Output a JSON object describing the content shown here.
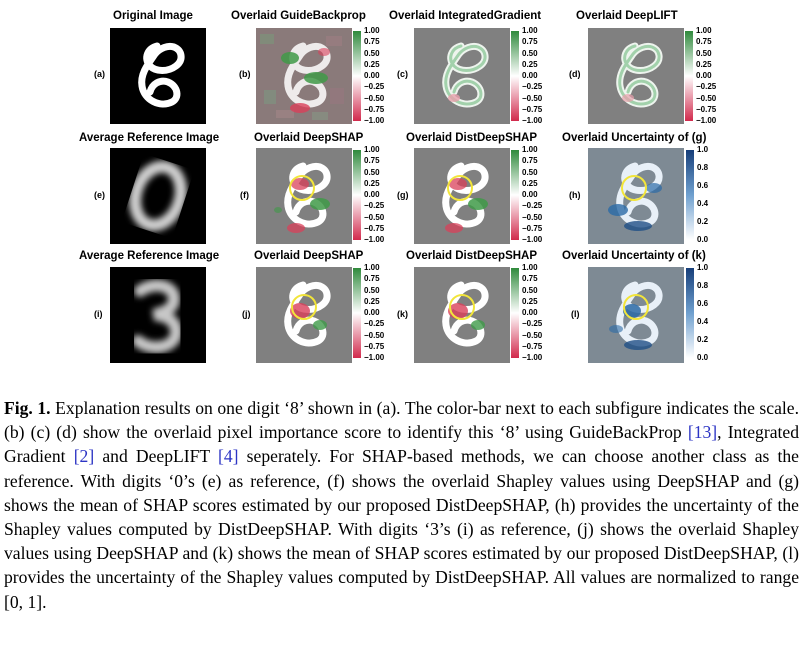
{
  "titles": {
    "r1c1": "Original Image",
    "r1c2": "Overlaid GuideBackprop",
    "r1c3": "Overlaid IntegratedGradient",
    "r1c4": "Overlaid DeepLIFT",
    "r2c1": "Average Reference Image",
    "r2c2": "Overlaid DeepSHAP",
    "r2c3": "Overlaid DistDeepSHAP",
    "r2c4": "Overlaid Uncertainty of (g)",
    "r3c1": "Average Reference Image",
    "r3c2": "Overlaid DeepSHAP",
    "r3c3": "Overlaid DistDeepSHAP",
    "r3c4": "Overlaid Uncertainty of (k)"
  },
  "sublabels": {
    "a": "(a)",
    "b": "(b)",
    "c": "(c)",
    "d": "(d)",
    "e": "(e)",
    "f": "(f)",
    "g": "(g)",
    "h": "(h)",
    "i": "(i)",
    "j": "(j)",
    "k": "(k)",
    "l": "(l)"
  },
  "colorbar_signed_ticks": [
    "1.00",
    "0.75",
    "0.50",
    "0.25",
    "0.00",
    "−0.25",
    "−0.50",
    "−0.75",
    "−1.00"
  ],
  "colorbar_unit_ticks": [
    "1.0",
    "0.8",
    "0.6",
    "0.4",
    "0.2",
    "0.0"
  ],
  "colors": {
    "positive": "#3f9a48",
    "negative": "#d9405a",
    "uncertainty": "#2b6aa6",
    "highlight_circle": "#f2e53a"
  },
  "caption": {
    "head": "Fig. 1.",
    "t1": " Explanation results on one digit ‘8’ shown in (a). The color-bar next to each subfigure indicates the scale. (b) (c) (d) show the overlaid pixel importance score to identify this ‘8’ using GuideBackProp ",
    "r1": "[13]",
    "t2": ", Integrated Gradient ",
    "r2": "[2]",
    "t3": " and DeepLIFT ",
    "r3": "[4]",
    "t4": " seperately. For SHAP-based methods, we can choose another class as the reference. With digits ‘0’s (e) as reference, (f) shows the overlaid Shapley values using DeepSHAP and (g) shows the mean of SHAP scores estimated by our proposed DistDeepSHAP, (h) provides the uncertainty of the Shapley values computed by DistDeepSHAP. With digits ‘3’s (i) as reference, (j) shows the overlaid Shapley values using DeepSHAP and (k) shows the mean of SHAP scores estimated by our proposed DistDeepSHAP, (l) provides the uncertainty of the Shapley values computed by DistDeepSHAP. All values are normalized to range [0, 1]."
  }
}
